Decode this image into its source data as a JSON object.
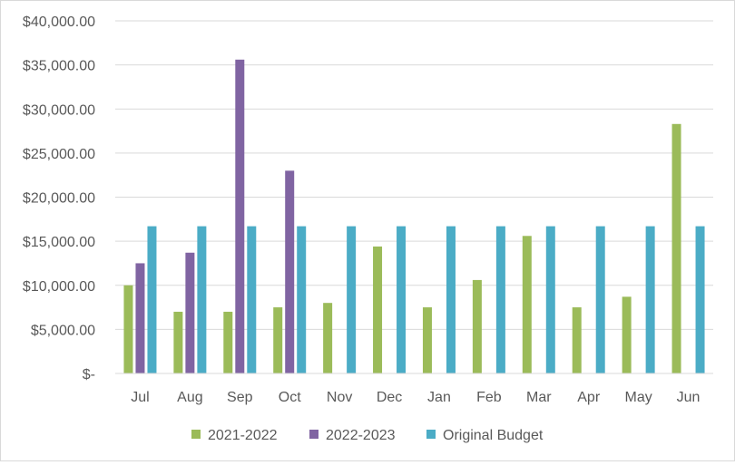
{
  "chart_data": {
    "type": "bar",
    "title": "",
    "xlabel": "",
    "ylabel": "",
    "ylim": [
      0,
      40000
    ],
    "yticks": [
      0,
      5000,
      10000,
      15000,
      20000,
      25000,
      30000,
      35000,
      40000
    ],
    "ytick_labels": [
      "$-",
      "$5,000.00",
      "$10,000.00",
      "$15,000.00",
      "$20,000.00",
      "$25,000.00",
      "$30,000.00",
      "$35,000.00",
      "$40,000.00"
    ],
    "grid": true,
    "legend_position": "bottom",
    "categories": [
      "Jul",
      "Aug",
      "Sep",
      "Oct",
      "Nov",
      "Dec",
      "Jan",
      "Feb",
      "Mar",
      "Apr",
      "May",
      "Jun"
    ],
    "series": [
      {
        "name": "2021-2022",
        "color": "#9bbb59",
        "values": [
          10000,
          7000,
          7000,
          7500,
          8000,
          14400,
          7500,
          10600,
          15600,
          7500,
          8700,
          28300
        ]
      },
      {
        "name": "2022-2023",
        "color": "#8064a2",
        "values": [
          12500,
          13700,
          35600,
          23000,
          null,
          null,
          null,
          null,
          null,
          null,
          null,
          null
        ]
      },
      {
        "name": "Original Budget",
        "color": "#4bacc6",
        "values": [
          16700,
          16700,
          16700,
          16700,
          16700,
          16700,
          16700,
          16700,
          16700,
          16700,
          16700,
          16700
        ]
      }
    ]
  }
}
